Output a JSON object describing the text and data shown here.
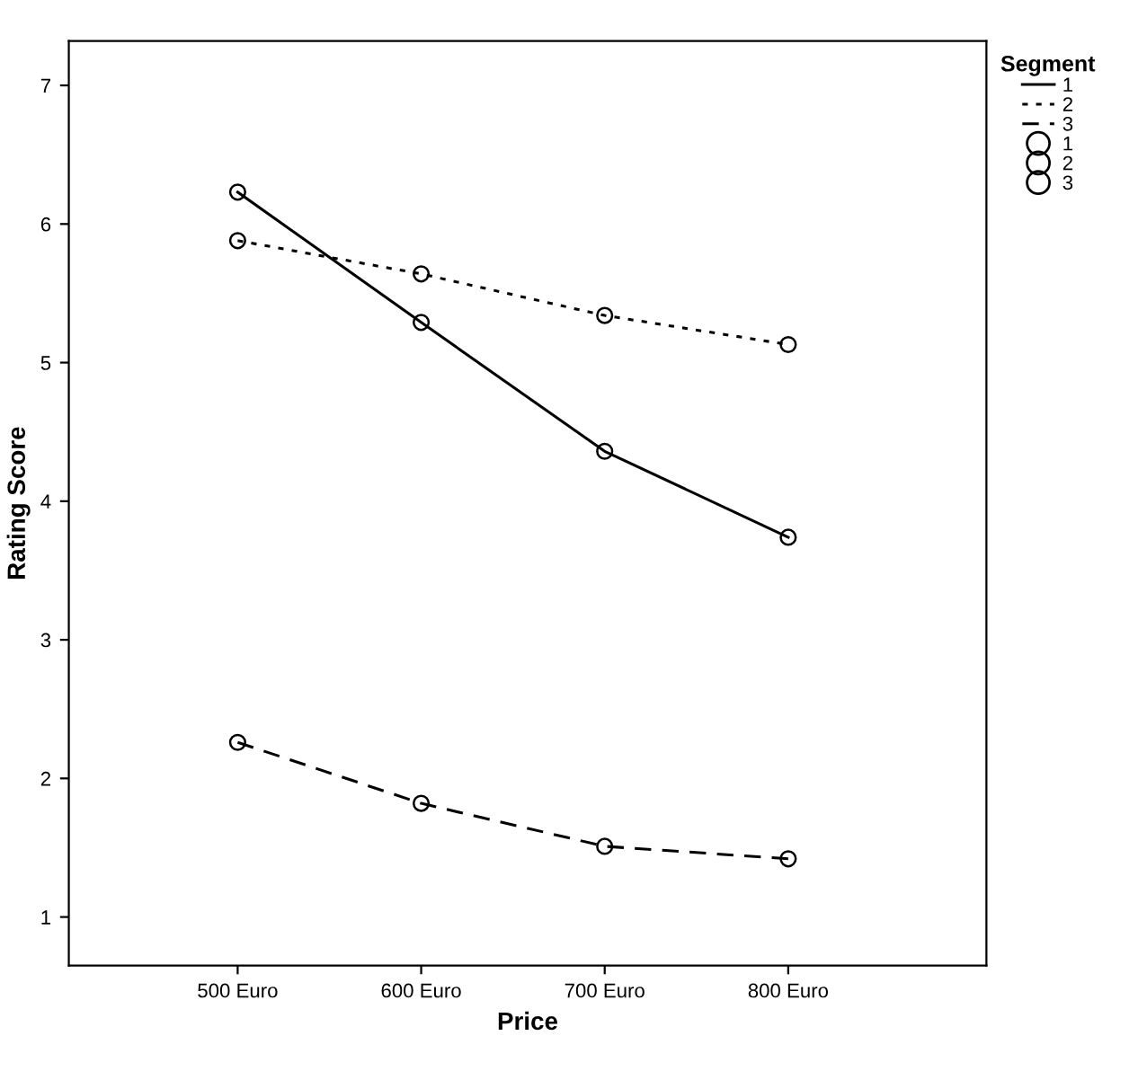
{
  "chart_data": {
    "type": "line",
    "xlabel": "Price",
    "ylabel": "Rating Score",
    "legend_title": "Segment",
    "categories": [
      "500 Euro",
      "600 Euro",
      "700 Euro",
      "800 Euro"
    ],
    "series": [
      {
        "name": "1",
        "color": "#000000",
        "line_style": "solid",
        "values": [
          6.23,
          5.29,
          4.36,
          3.74
        ]
      },
      {
        "name": "2",
        "color": "#000000",
        "line_style": "dotted",
        "values": [
          5.88,
          5.64,
          5.34,
          5.13
        ]
      },
      {
        "name": "3",
        "color": "#000000",
        "line_style": "dashed",
        "values": [
          2.26,
          1.82,
          1.51,
          1.42
        ]
      }
    ],
    "marker": "circle",
    "ylim": [
      0.65,
      7.32
    ],
    "yticks": [
      1,
      2,
      3,
      4,
      5,
      6,
      7
    ],
    "grid": false,
    "legend": "right"
  }
}
